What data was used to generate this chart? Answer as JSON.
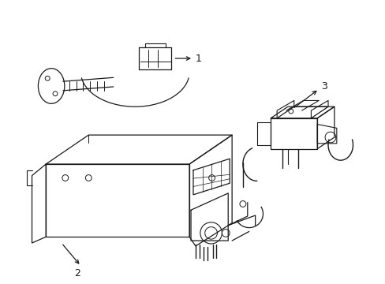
{
  "background_color": "#ffffff",
  "line_color": "#1a1a1a",
  "line_width": 0.9,
  "fig_width": 4.89,
  "fig_height": 3.6,
  "dpi": 100
}
